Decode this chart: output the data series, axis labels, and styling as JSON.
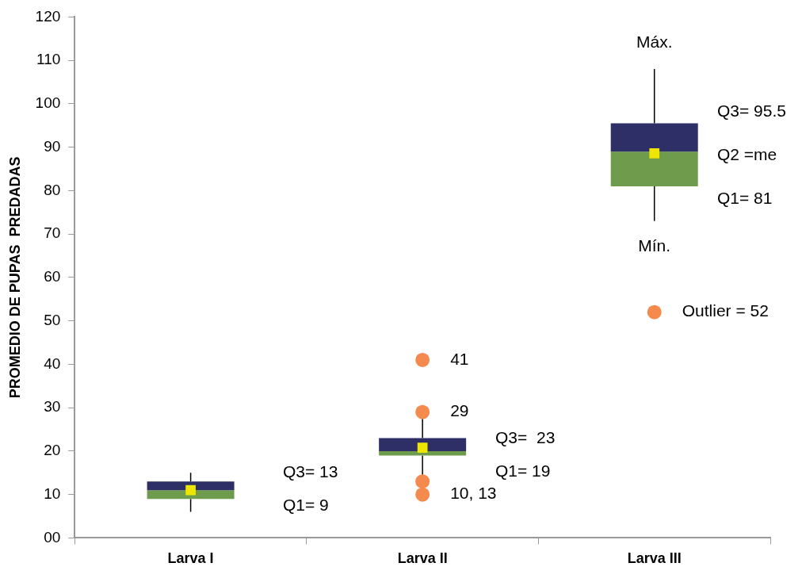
{
  "chart_data": {
    "type": "box",
    "ylabel": "PROMEDIO DE PUPAS  PREDADAS",
    "categories": [
      "Larva I",
      "Larva II",
      "Larva III"
    ],
    "ylim": [
      0,
      120
    ],
    "yticks": [
      {
        "value": 0,
        "label": "00"
      },
      10,
      20,
      30,
      40,
      50,
      60,
      70,
      80,
      90,
      100,
      110,
      120
    ],
    "grid": false,
    "legend": false,
    "series": [
      {
        "color": "#2e2f66",
        "colors": [
          "#6e9c4c",
          "#6e9c4c",
          "#6e9c4c"
        ],
        "boxes": [
          {
            "low": 6,
            "q1": 9,
            "median": 11,
            "q3": 13,
            "high": 15
          },
          {
            "low": 14,
            "q1": 19,
            "median": 20,
            "q3": 23,
            "high": 28
          },
          {
            "low": 73,
            "q1": 81,
            "median": 89,
            "q3": 95.5,
            "high": 108
          }
        ]
      },
      {
        "type": "scatter",
        "marker": "square",
        "color": "#eee600",
        "x": [
          "Larva I",
          "Larva II",
          "Larva III"
        ],
        "values": [
          11,
          20.8,
          88.6
        ]
      },
      {
        "type": "scatter",
        "marker": "circle",
        "color": "#f58a4f",
        "x": [
          "Larva II",
          "Larva II",
          "Larva II",
          "Larva II",
          "Larva III"
        ],
        "values": [
          41,
          29,
          13,
          10,
          52
        ]
      }
    ],
    "annotations": [
      "Q3= 13",
      "Q1= 9",
      {
        "text": "41",
        "x": "Larva II",
        "y": 41
      },
      {
        "text": "29",
        "x": "Larva II",
        "y": 29
      },
      "Q3=  23",
      "Q1= 19",
      {
        "text": "10, 13",
        "x": "Larva II",
        "y": 10
      },
      {
        "text": "Máx.",
        "x": "Larva III",
        "y": 108
      },
      "Q3= 95.5",
      "Q2 =me",
      "Q1= 81",
      {
        "text": "Mín.",
        "x": "Larva III",
        "y": 73
      },
      {
        "text": "Outlier = 52",
        "x": "Larva III",
        "y": 52
      }
    ]
  }
}
